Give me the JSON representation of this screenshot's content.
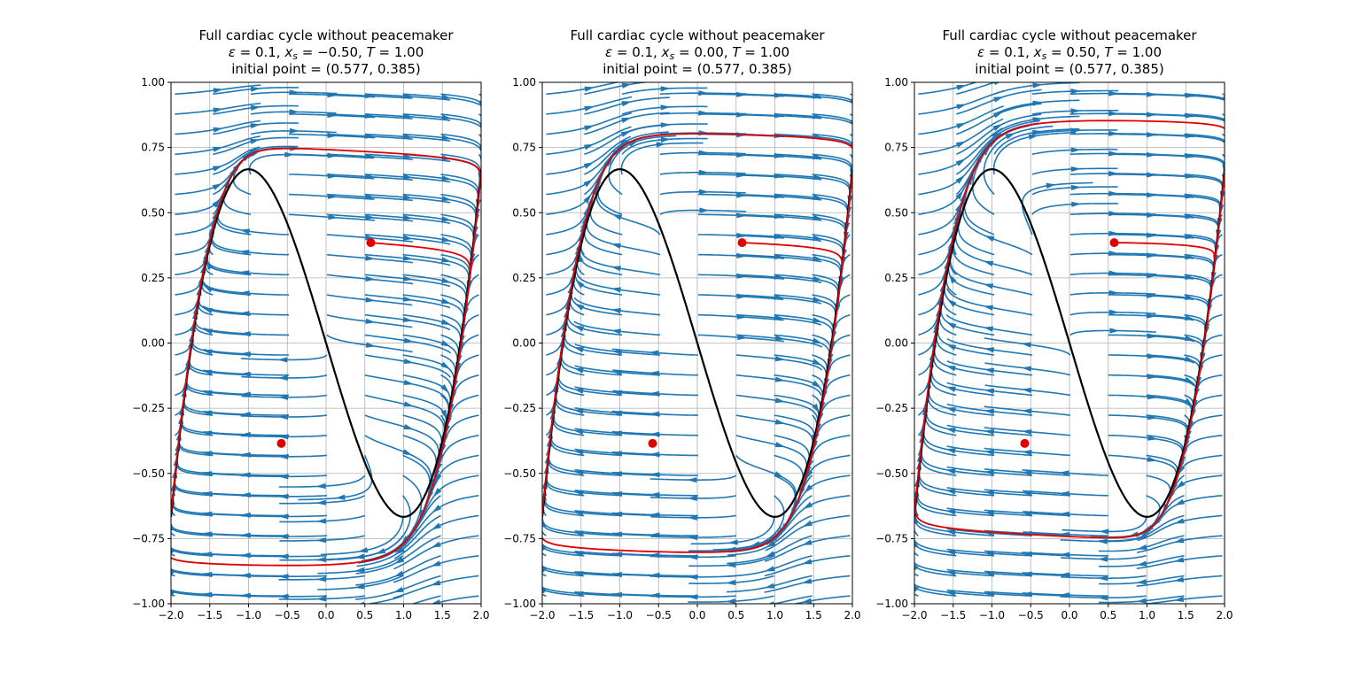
{
  "chart_data": [
    {
      "type": "line",
      "title": {
        "line1": "Full cardiac cycle without peacemaker",
        "eps": "0.1",
        "xs": "−0.50",
        "T": "1.00",
        "line3": "initial point = (0.577, 0.385)"
      },
      "xs": -0.5,
      "xlim": [
        -2.0,
        2.0
      ],
      "ylim": [
        -1.0,
        1.0
      ],
      "xticks": [
        "−2.0",
        "−1.5",
        "−1.0",
        "−0.5",
        "0.0",
        "0.5",
        "1.0",
        "1.5",
        "2.0"
      ],
      "yticks": [
        "−1.00",
        "−0.75",
        "−0.50",
        "−0.25",
        "0.00",
        "0.25",
        "0.50",
        "0.75",
        "1.00"
      ],
      "grid": true,
      "points": [
        {
          "x": 0.577,
          "y": 0.385
        },
        {
          "x": -0.577,
          "y": -0.385
        }
      ],
      "colors": {
        "stream": "#1f77b4",
        "nullcline": "#000000",
        "trajectory": "#e00000",
        "point": "#e00000"
      }
    },
    {
      "type": "line",
      "title": {
        "line1": "Full cardiac cycle without peacemaker",
        "eps": "0.1",
        "xs": "0.00",
        "T": "1.00",
        "line3": "initial point = (0.577, 0.385)"
      },
      "xs": 0.0,
      "xlim": [
        -2.0,
        2.0
      ],
      "ylim": [
        -1.0,
        1.0
      ],
      "xticks": [
        "−2.0",
        "−1.5",
        "−1.0",
        "−0.5",
        "0.0",
        "0.5",
        "1.0",
        "1.5",
        "2.0"
      ],
      "yticks": [
        "−1.00",
        "−0.75",
        "−0.50",
        "−0.25",
        "0.00",
        "0.25",
        "0.50",
        "0.75",
        "1.00"
      ],
      "grid": true,
      "points": [
        {
          "x": 0.577,
          "y": 0.385
        },
        {
          "x": -0.577,
          "y": -0.385
        }
      ],
      "colors": {
        "stream": "#1f77b4",
        "nullcline": "#000000",
        "trajectory": "#e00000",
        "point": "#e00000"
      }
    },
    {
      "type": "line",
      "title": {
        "line1": "Full cardiac cycle without peacemaker",
        "eps": "0.1",
        "xs": "0.50",
        "T": "1.00",
        "line3": "initial point = (0.577, 0.385)"
      },
      "xs": 0.5,
      "xlim": [
        -2.0,
        2.0
      ],
      "ylim": [
        -1.0,
        1.0
      ],
      "xticks": [
        "−2.0",
        "−1.5",
        "−1.0",
        "−0.5",
        "0.0",
        "0.5",
        "1.0",
        "1.5",
        "2.0"
      ],
      "yticks": [
        "−1.00",
        "−0.75",
        "−0.50",
        "−0.25",
        "0.00",
        "0.25",
        "0.50",
        "0.75",
        "1.00"
      ],
      "grid": true,
      "points": [
        {
          "x": 0.577,
          "y": 0.385
        },
        {
          "x": -0.577,
          "y": -0.385
        }
      ],
      "colors": {
        "stream": "#1f77b4",
        "nullcline": "#000000",
        "trajectory": "#e00000",
        "point": "#e00000"
      }
    }
  ]
}
